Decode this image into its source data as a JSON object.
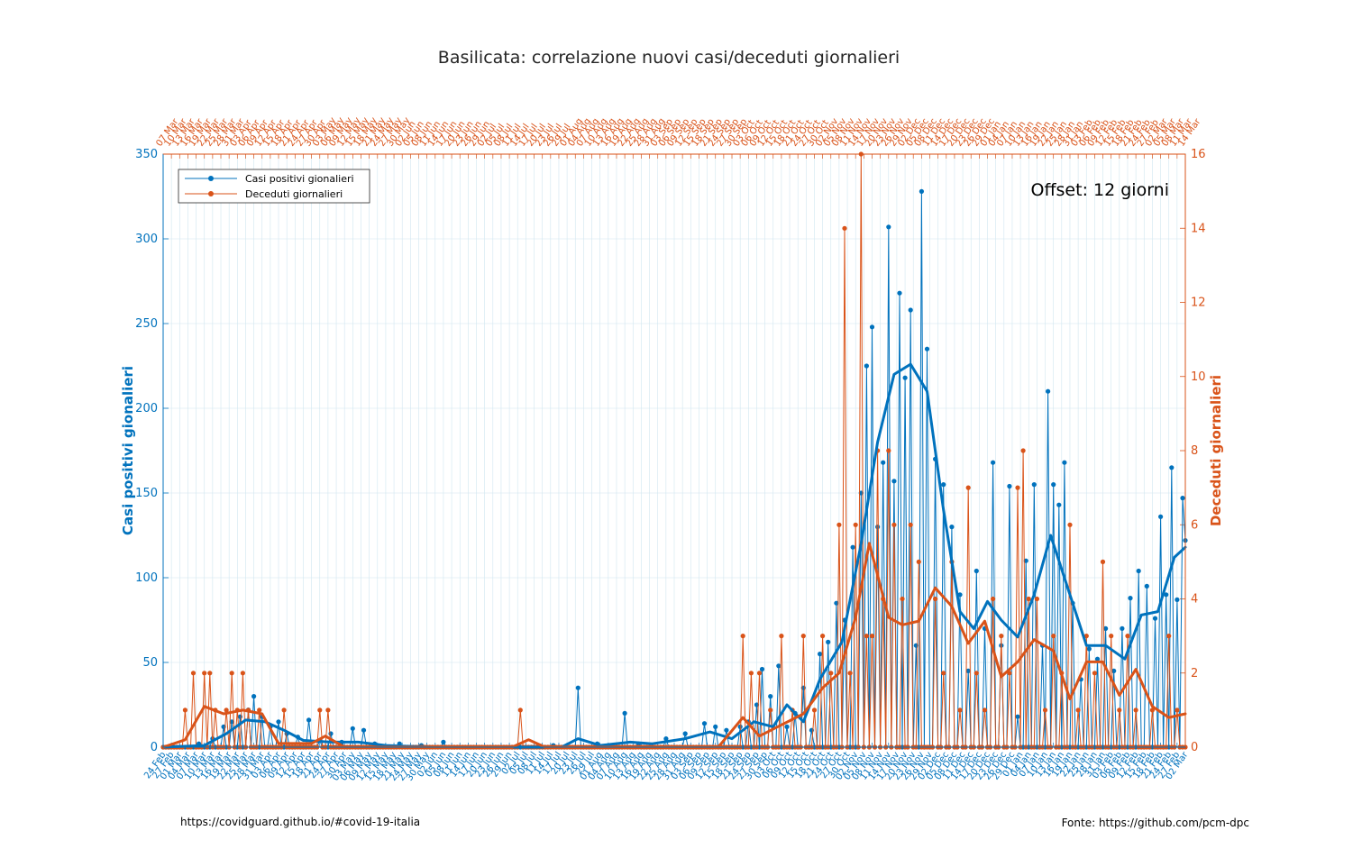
{
  "chart_data": {
    "type": "line",
    "title": "Basilicata: correlazione nuovi casi/deceduti giornalieri",
    "ylabel_left": "Casi positivi gionalieri",
    "ylabel_right": "Deceduti giornalieri",
    "annotation": "Offset: 12 giorni",
    "footer_left": "https://covidguard.github.io/#covid-19-italia",
    "footer_right": "Fonte: https://github.com/pcm-dpc",
    "ylim_left": [
      0,
      350
    ],
    "yticks_left": [
      0,
      50,
      100,
      150,
      200,
      250,
      300,
      350
    ],
    "ylim_right": [
      0,
      16
    ],
    "yticks_right": [
      0,
      2,
      4,
      6,
      8,
      10,
      12,
      14,
      16
    ],
    "grid": true,
    "legend_position": "top-left",
    "x_bottom_range": [
      "2020-02-24",
      "2021-03-02"
    ],
    "x_top_range": [
      "2020-03-07",
      "2021-03-14"
    ],
    "x_tick_step_days": 3,
    "colors": {
      "cases": "#0072bd",
      "deaths": "#d95319",
      "grid": "#d0e6f0"
    },
    "series": [
      {
        "name": "Casi positivi gionalieri",
        "axis": "left",
        "color": "#0072bd",
        "daily_points": [
          [
            "2020-02-24",
            0
          ],
          [
            "2020-03-01",
            0
          ],
          [
            "2020-03-08",
            2
          ],
          [
            "2020-03-13",
            5
          ],
          [
            "2020-03-17",
            12
          ],
          [
            "2020-03-20",
            15
          ],
          [
            "2020-03-23",
            18
          ],
          [
            "2020-03-26",
            22
          ],
          [
            "2020-03-28",
            30
          ],
          [
            "2020-03-31",
            18
          ],
          [
            "2020-04-03",
            12
          ],
          [
            "2020-04-06",
            15
          ],
          [
            "2020-04-09",
            8
          ],
          [
            "2020-04-13",
            6
          ],
          [
            "2020-04-17",
            16
          ],
          [
            "2020-04-21",
            4
          ],
          [
            "2020-04-25",
            8
          ],
          [
            "2020-04-29",
            3
          ],
          [
            "2020-05-03",
            11
          ],
          [
            "2020-05-07",
            10
          ],
          [
            "2020-05-11",
            2
          ],
          [
            "2020-05-20",
            2
          ],
          [
            "2020-05-28",
            1
          ],
          [
            "2020-06-05",
            3
          ],
          [
            "2020-06-15",
            0
          ],
          [
            "2020-07-01",
            0
          ],
          [
            "2020-07-15",
            1
          ],
          [
            "2020-07-24",
            35
          ],
          [
            "2020-07-31",
            2
          ],
          [
            "2020-08-10",
            20
          ],
          [
            "2020-08-15",
            2
          ],
          [
            "2020-08-25",
            5
          ],
          [
            "2020-09-01",
            8
          ],
          [
            "2020-09-08",
            14
          ],
          [
            "2020-09-12",
            12
          ],
          [
            "2020-09-16",
            10
          ],
          [
            "2020-09-21",
            12
          ],
          [
            "2020-09-24",
            15
          ],
          [
            "2020-09-27",
            25
          ],
          [
            "2020-09-29",
            46
          ],
          [
            "2020-10-02",
            30
          ],
          [
            "2020-10-05",
            48
          ],
          [
            "2020-10-08",
            12
          ],
          [
            "2020-10-11",
            20
          ],
          [
            "2020-10-14",
            35
          ],
          [
            "2020-10-17",
            10
          ],
          [
            "2020-10-20",
            55
          ],
          [
            "2020-10-23",
            62
          ],
          [
            "2020-10-26",
            85
          ],
          [
            "2020-10-29",
            75
          ],
          [
            "2020-11-01",
            118
          ],
          [
            "2020-11-04",
            150
          ],
          [
            "2020-11-06",
            225
          ],
          [
            "2020-11-08",
            248
          ],
          [
            "2020-11-10",
            130
          ],
          [
            "2020-11-12",
            168
          ],
          [
            "2020-11-14",
            307
          ],
          [
            "2020-11-16",
            157
          ],
          [
            "2020-11-18",
            268
          ],
          [
            "2020-11-20",
            218
          ],
          [
            "2020-11-22",
            258
          ],
          [
            "2020-11-24",
            60
          ],
          [
            "2020-11-26",
            328
          ],
          [
            "2020-11-28",
            235
          ],
          [
            "2020-12-01",
            170
          ],
          [
            "2020-12-04",
            155
          ],
          [
            "2020-12-07",
            130
          ],
          [
            "2020-12-10",
            90
          ],
          [
            "2020-12-13",
            45
          ],
          [
            "2020-12-16",
            104
          ],
          [
            "2020-12-19",
            70
          ],
          [
            "2020-12-22",
            168
          ],
          [
            "2020-12-25",
            60
          ],
          [
            "2020-12-28",
            154
          ],
          [
            "2020-12-31",
            18
          ],
          [
            "2021-01-03",
            110
          ],
          [
            "2021-01-06",
            155
          ],
          [
            "2021-01-09",
            60
          ],
          [
            "2021-01-11",
            210
          ],
          [
            "2021-01-13",
            155
          ],
          [
            "2021-01-15",
            143
          ],
          [
            "2021-01-17",
            168
          ],
          [
            "2021-01-20",
            85
          ],
          [
            "2021-01-23",
            40
          ],
          [
            "2021-01-26",
            58
          ],
          [
            "2021-01-29",
            52
          ],
          [
            "2021-02-01",
            70
          ],
          [
            "2021-02-04",
            45
          ],
          [
            "2021-02-07",
            70
          ],
          [
            "2021-02-10",
            88
          ],
          [
            "2021-02-13",
            104
          ],
          [
            "2021-02-16",
            95
          ],
          [
            "2021-02-19",
            76
          ],
          [
            "2021-02-21",
            136
          ],
          [
            "2021-02-23",
            90
          ],
          [
            "2021-02-25",
            165
          ],
          [
            "2021-02-27",
            87
          ],
          [
            "2021-03-01",
            147
          ],
          [
            "2021-03-02",
            122
          ]
        ]
      },
      {
        "name": "Deceduti giornalieri",
        "axis": "right",
        "color": "#d95319",
        "daily_points": [
          [
            "2020-03-07",
            0
          ],
          [
            "2020-03-15",
            1
          ],
          [
            "2020-03-18",
            2
          ],
          [
            "2020-03-20",
            0
          ],
          [
            "2020-03-22",
            2
          ],
          [
            "2020-03-24",
            2
          ],
          [
            "2020-03-26",
            1
          ],
          [
            "2020-03-28",
            0
          ],
          [
            "2020-03-30",
            1
          ],
          [
            "2020-04-01",
            2
          ],
          [
            "2020-04-03",
            1
          ],
          [
            "2020-04-05",
            2
          ],
          [
            "2020-04-07",
            1
          ],
          [
            "2020-04-09",
            0
          ],
          [
            "2020-04-11",
            1
          ],
          [
            "2020-04-20",
            1
          ],
          [
            "2020-04-24",
            0
          ],
          [
            "2020-05-03",
            1
          ],
          [
            "2020-05-05",
            0
          ],
          [
            "2020-05-06",
            1
          ],
          [
            "2020-06-01",
            0
          ],
          [
            "2020-07-15",
            1
          ],
          [
            "2020-07-20",
            0
          ],
          [
            "2020-09-01",
            0
          ],
          [
            "2020-10-04",
            3
          ],
          [
            "2020-10-07",
            2
          ],
          [
            "2020-10-10",
            2
          ],
          [
            "2020-10-14",
            1
          ],
          [
            "2020-10-18",
            3
          ],
          [
            "2020-10-22",
            1
          ],
          [
            "2020-10-26",
            3
          ],
          [
            "2020-10-30",
            1
          ],
          [
            "2020-11-02",
            3
          ],
          [
            "2020-11-05",
            2
          ],
          [
            "2020-11-08",
            6
          ],
          [
            "2020-11-10",
            14
          ],
          [
            "2020-11-12",
            2
          ],
          [
            "2020-11-14",
            6
          ],
          [
            "2020-11-16",
            16
          ],
          [
            "2020-11-18",
            3
          ],
          [
            "2020-11-20",
            3
          ],
          [
            "2020-11-22",
            8
          ],
          [
            "2020-11-24",
            4
          ],
          [
            "2020-11-26",
            8
          ],
          [
            "2020-11-28",
            6
          ],
          [
            "2020-12-01",
            4
          ],
          [
            "2020-12-04",
            6
          ],
          [
            "2020-12-07",
            5
          ],
          [
            "2020-12-10",
            0
          ],
          [
            "2020-12-13",
            4
          ],
          [
            "2020-12-16",
            2
          ],
          [
            "2020-12-19",
            5
          ],
          [
            "2020-12-22",
            1
          ],
          [
            "2020-12-25",
            7
          ],
          [
            "2020-12-28",
            2
          ],
          [
            "2020-12-31",
            1
          ],
          [
            "2021-01-03",
            4
          ],
          [
            "2021-01-06",
            3
          ],
          [
            "2021-01-09",
            2
          ],
          [
            "2021-01-12",
            7
          ],
          [
            "2021-01-14",
            8
          ],
          [
            "2021-01-16",
            4
          ],
          [
            "2021-01-19",
            4
          ],
          [
            "2021-01-22",
            1
          ],
          [
            "2021-01-25",
            3
          ],
          [
            "2021-01-28",
            2
          ],
          [
            "2021-01-31",
            6
          ],
          [
            "2021-02-03",
            1
          ],
          [
            "2021-02-06",
            3
          ],
          [
            "2021-02-09",
            2
          ],
          [
            "2021-02-12",
            5
          ],
          [
            "2021-02-15",
            3
          ],
          [
            "2021-02-18",
            1
          ],
          [
            "2021-02-21",
            3
          ],
          [
            "2021-02-24",
            1
          ],
          [
            "2021-02-27",
            0
          ],
          [
            "2021-03-02",
            1
          ],
          [
            "2021-03-05",
            0
          ],
          [
            "2021-03-08",
            3
          ],
          [
            "2021-03-11",
            1
          ],
          [
            "2021-03-14",
            0
          ]
        ]
      },
      {
        "name": "Casi positivi gionalieri (smoothed)",
        "axis": "left",
        "color": "#0072bd",
        "points": [
          [
            "2020-02-24",
            0
          ],
          [
            "2020-03-10",
            1
          ],
          [
            "2020-03-18",
            8
          ],
          [
            "2020-03-25",
            16
          ],
          [
            "2020-04-01",
            15
          ],
          [
            "2020-04-08",
            10
          ],
          [
            "2020-04-15",
            4
          ],
          [
            "2020-04-25",
            3
          ],
          [
            "2020-05-05",
            3
          ],
          [
            "2020-05-15",
            1
          ],
          [
            "2020-06-01",
            0
          ],
          [
            "2020-07-18",
            0
          ],
          [
            "2020-07-24",
            5
          ],
          [
            "2020-08-01",
            1
          ],
          [
            "2020-08-12",
            3
          ],
          [
            "2020-08-20",
            2
          ],
          [
            "2020-09-01",
            5
          ],
          [
            "2020-09-10",
            9
          ],
          [
            "2020-09-18",
            5
          ],
          [
            "2020-09-26",
            15
          ],
          [
            "2020-10-03",
            12
          ],
          [
            "2020-10-08",
            25
          ],
          [
            "2020-10-14",
            15
          ],
          [
            "2020-10-20",
            40
          ],
          [
            "2020-10-28",
            62
          ],
          [
            "2020-11-04",
            120
          ],
          [
            "2020-11-10",
            180
          ],
          [
            "2020-11-16",
            220
          ],
          [
            "2020-11-22",
            226
          ],
          [
            "2020-11-28",
            210
          ],
          [
            "2020-12-04",
            140
          ],
          [
            "2020-12-10",
            80
          ],
          [
            "2020-12-15",
            70
          ],
          [
            "2020-12-20",
            86
          ],
          [
            "2020-12-25",
            75
          ],
          [
            "2020-12-31",
            65
          ],
          [
            "2021-01-06",
            90
          ],
          [
            "2021-01-12",
            125
          ],
          [
            "2021-01-18",
            95
          ],
          [
            "2021-01-25",
            60
          ],
          [
            "2021-02-01",
            60
          ],
          [
            "2021-02-08",
            52
          ],
          [
            "2021-02-14",
            78
          ],
          [
            "2021-02-20",
            80
          ],
          [
            "2021-02-26",
            112
          ],
          [
            "2021-03-02",
            118
          ]
        ]
      },
      {
        "name": "Deceduti giornalieri (smoothed)",
        "axis": "right",
        "color": "#d95319",
        "points": [
          [
            "2020-03-07",
            0
          ],
          [
            "2020-03-15",
            0.2
          ],
          [
            "2020-03-22",
            1.1
          ],
          [
            "2020-03-29",
            0.9
          ],
          [
            "2020-04-05",
            1.0
          ],
          [
            "2020-04-12",
            0.9
          ],
          [
            "2020-04-18",
            0.1
          ],
          [
            "2020-04-30",
            0.1
          ],
          [
            "2020-05-05",
            0.3
          ],
          [
            "2020-05-12",
            0.0
          ],
          [
            "2020-07-12",
            0.0
          ],
          [
            "2020-07-18",
            0.2
          ],
          [
            "2020-07-24",
            0.0
          ],
          [
            "2020-09-25",
            0.0
          ],
          [
            "2020-10-04",
            0.8
          ],
          [
            "2020-10-10",
            0.3
          ],
          [
            "2020-10-18",
            0.6
          ],
          [
            "2020-10-26",
            0.9
          ],
          [
            "2020-11-02",
            1.6
          ],
          [
            "2020-11-08",
            2.0
          ],
          [
            "2020-11-14",
            3.5
          ],
          [
            "2020-11-19",
            5.5
          ],
          [
            "2020-11-26",
            3.5
          ],
          [
            "2020-12-01",
            3.3
          ],
          [
            "2020-12-07",
            3.4
          ],
          [
            "2020-12-13",
            4.3
          ],
          [
            "2020-12-19",
            3.8
          ],
          [
            "2020-12-25",
            2.8
          ],
          [
            "2020-12-31",
            3.4
          ],
          [
            "2021-01-06",
            1.9
          ],
          [
            "2021-01-12",
            2.3
          ],
          [
            "2021-01-18",
            2.9
          ],
          [
            "2021-01-25",
            2.6
          ],
          [
            "2021-01-31",
            1.3
          ],
          [
            "2021-02-06",
            2.3
          ],
          [
            "2021-02-12",
            2.3
          ],
          [
            "2021-02-18",
            1.4
          ],
          [
            "2021-02-24",
            2.1
          ],
          [
            "2021-03-02",
            1.1
          ],
          [
            "2021-03-08",
            0.8
          ],
          [
            "2021-03-14",
            0.9
          ]
        ]
      }
    ]
  }
}
